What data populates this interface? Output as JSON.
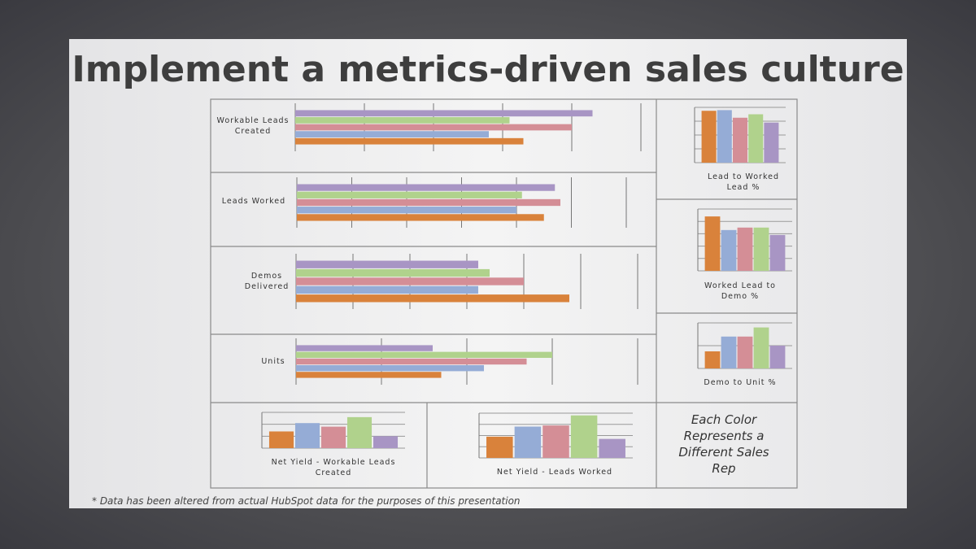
{
  "title": "Implement a metrics-driven sales culture",
  "note": "Each Color Represents a Different Sales Rep",
  "footnote": "* Data has been altered from actual HubSpot data for the purposes of this presentation",
  "chart_data": [
    {
      "type": "bar",
      "orientation": "horizontal",
      "label": "Workable Leads Created",
      "values": [
        3.3,
        2.8,
        4.0,
        3.1,
        4.3
      ],
      "colors": [
        "#d9823b",
        "#95acd6",
        "#d48e96",
        "#b0d28c",
        "#a895c4"
      ],
      "xlim": [
        0,
        5
      ],
      "grid": true
    },
    {
      "type": "bar",
      "orientation": "horizontal",
      "label": "Leads Worked",
      "values": [
        4.5,
        4.0,
        4.8,
        4.1,
        4.7
      ],
      "colors": [
        "#d9823b",
        "#95acd6",
        "#d48e96",
        "#b0d28c",
        "#a895c4"
      ],
      "xlim": [
        0,
        6
      ],
      "grid": true
    },
    {
      "type": "bar",
      "orientation": "horizontal",
      "label": "Demos Delivered",
      "values": [
        4.8,
        3.2,
        4.0,
        3.4,
        3.2
      ],
      "colors": [
        "#d9823b",
        "#95acd6",
        "#d48e96",
        "#b0d28c",
        "#a895c4"
      ],
      "xlim": [
        0,
        6
      ],
      "grid": true
    },
    {
      "type": "bar",
      "orientation": "horizontal",
      "label": "Units",
      "values": [
        1.7,
        2.2,
        2.7,
        3.0,
        1.6
      ],
      "colors": [
        "#d9823b",
        "#95acd6",
        "#d48e96",
        "#b0d28c",
        "#a895c4"
      ],
      "xlim": [
        0,
        4
      ],
      "grid": true
    },
    {
      "type": "bar",
      "orientation": "vertical",
      "label": "Lead to Worked Lead %",
      "values": [
        3.75,
        3.8,
        3.25,
        3.5,
        2.9
      ],
      "colors": [
        "#d9823b",
        "#95acd6",
        "#d48e96",
        "#b0d28c",
        "#a895c4"
      ],
      "ylim": [
        0,
        4
      ],
      "grid": true
    },
    {
      "type": "bar",
      "orientation": "vertical",
      "label": "Worked Lead to Demo %",
      "values": [
        4.4,
        3.3,
        3.5,
        3.5,
        2.9
      ],
      "colors": [
        "#d9823b",
        "#95acd6",
        "#d48e96",
        "#b0d28c",
        "#a895c4"
      ],
      "ylim": [
        0,
        5
      ],
      "grid": true
    },
    {
      "type": "bar",
      "orientation": "vertical",
      "label": "Demo to Unit %",
      "values": [
        0.75,
        1.4,
        1.4,
        1.8,
        1.0
      ],
      "colors": [
        "#d9823b",
        "#95acd6",
        "#d48e96",
        "#b0d28c",
        "#a895c4"
      ],
      "ylim": [
        0,
        2
      ],
      "grid": true
    },
    {
      "type": "bar",
      "orientation": "vertical",
      "label": "Net Yield - Workable Leads Created",
      "values": [
        1.4,
        2.1,
        1.8,
        2.6,
        1.0
      ],
      "colors": [
        "#d9823b",
        "#95acd6",
        "#d48e96",
        "#b0d28c",
        "#a895c4"
      ],
      "ylim": [
        0,
        3
      ],
      "grid": true
    },
    {
      "type": "bar",
      "orientation": "vertical",
      "label": "Net Yield - Leads Worked",
      "values": [
        1.9,
        2.8,
        2.9,
        3.8,
        1.7
      ],
      "colors": [
        "#d9823b",
        "#95acd6",
        "#d48e96",
        "#b0d28c",
        "#a895c4"
      ],
      "ylim": [
        0,
        4
      ],
      "grid": true
    }
  ]
}
